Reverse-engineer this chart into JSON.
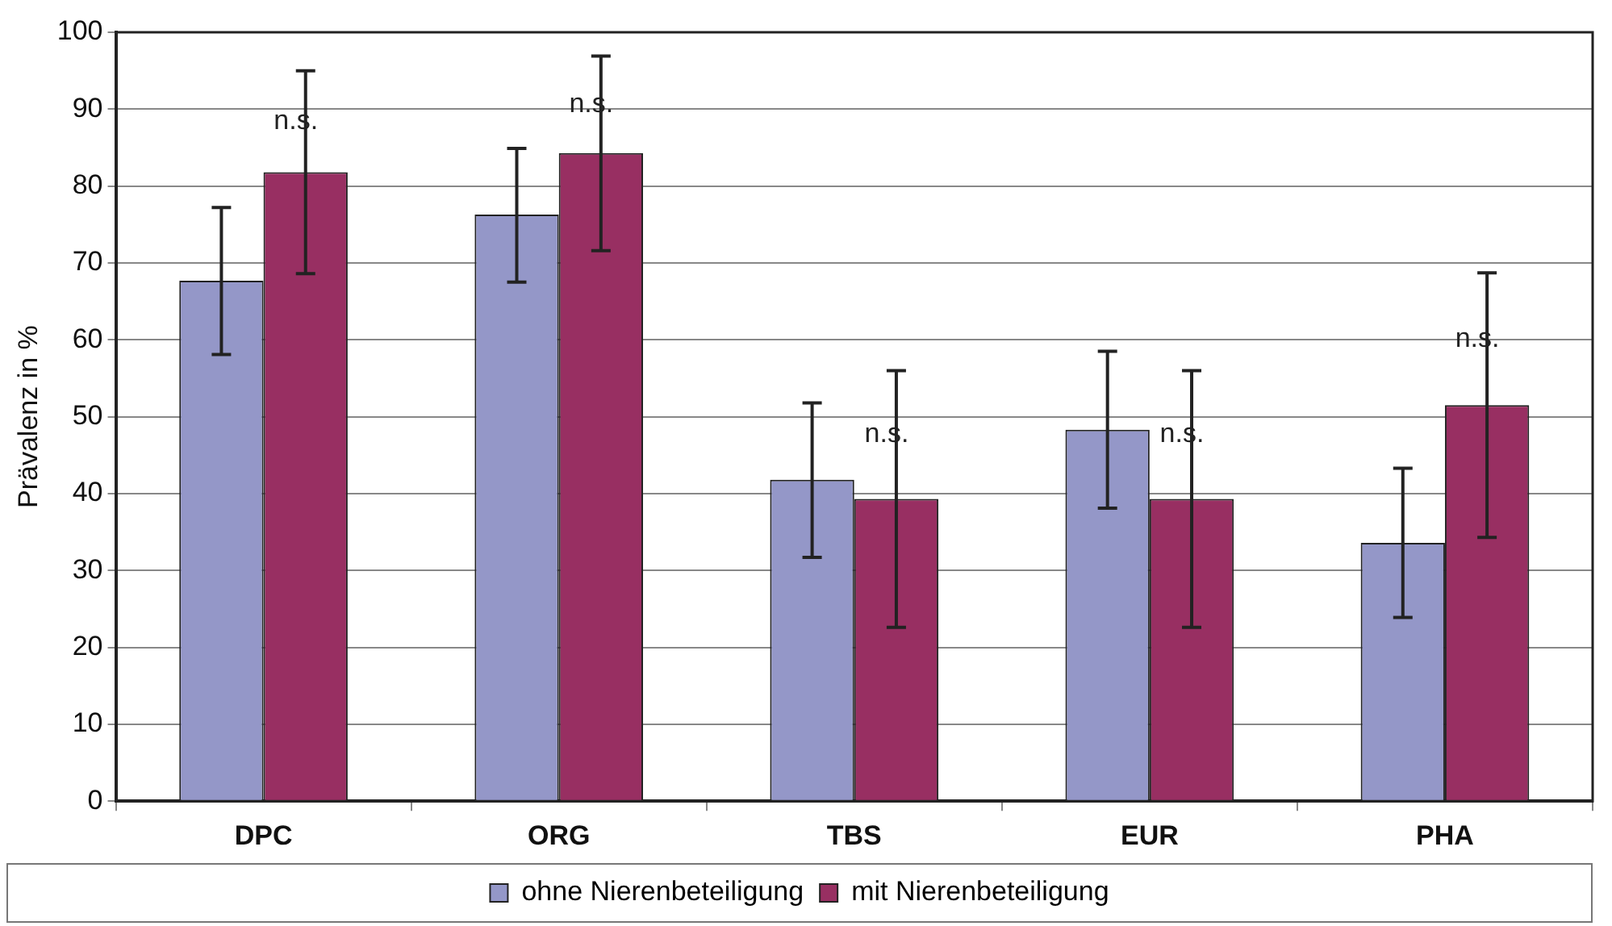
{
  "chart_data": {
    "type": "bar",
    "ylabel": "Prävalenz in %",
    "categories": [
      "DPC",
      "ORG",
      "TBS",
      "EUR",
      "PHA"
    ],
    "series": [
      {
        "name": "ohne Nierenbeteiligung",
        "color": "#9497c8",
        "values": [
          67.7,
          76.3,
          41.8,
          48.3,
          33.6
        ],
        "errors": [
          [
            58.1,
            77.2
          ],
          [
            67.5,
            84.9
          ],
          [
            31.7,
            51.8
          ],
          [
            38.1,
            58.5
          ],
          [
            23.9,
            43.3
          ]
        ]
      },
      {
        "name": "mit Nierenbeteiligung",
        "color": "#982f62",
        "values": [
          81.8,
          84.3,
          39.3,
          39.3,
          51.5
        ],
        "errors": [
          [
            68.6,
            95.0
          ],
          [
            71.6,
            96.9
          ],
          [
            22.6,
            56.0
          ],
          [
            22.6,
            56.0
          ],
          [
            34.3,
            68.7
          ]
        ]
      }
    ],
    "ylim": [
      0,
      100
    ],
    "yticks": [
      0,
      10,
      20,
      30,
      40,
      50,
      60,
      70,
      80,
      90,
      100
    ],
    "grid": "y",
    "legend": "bottom",
    "annotations": [
      "n.s.",
      "n.s.",
      "n.s.",
      "n.s.",
      "n.s."
    ]
  }
}
